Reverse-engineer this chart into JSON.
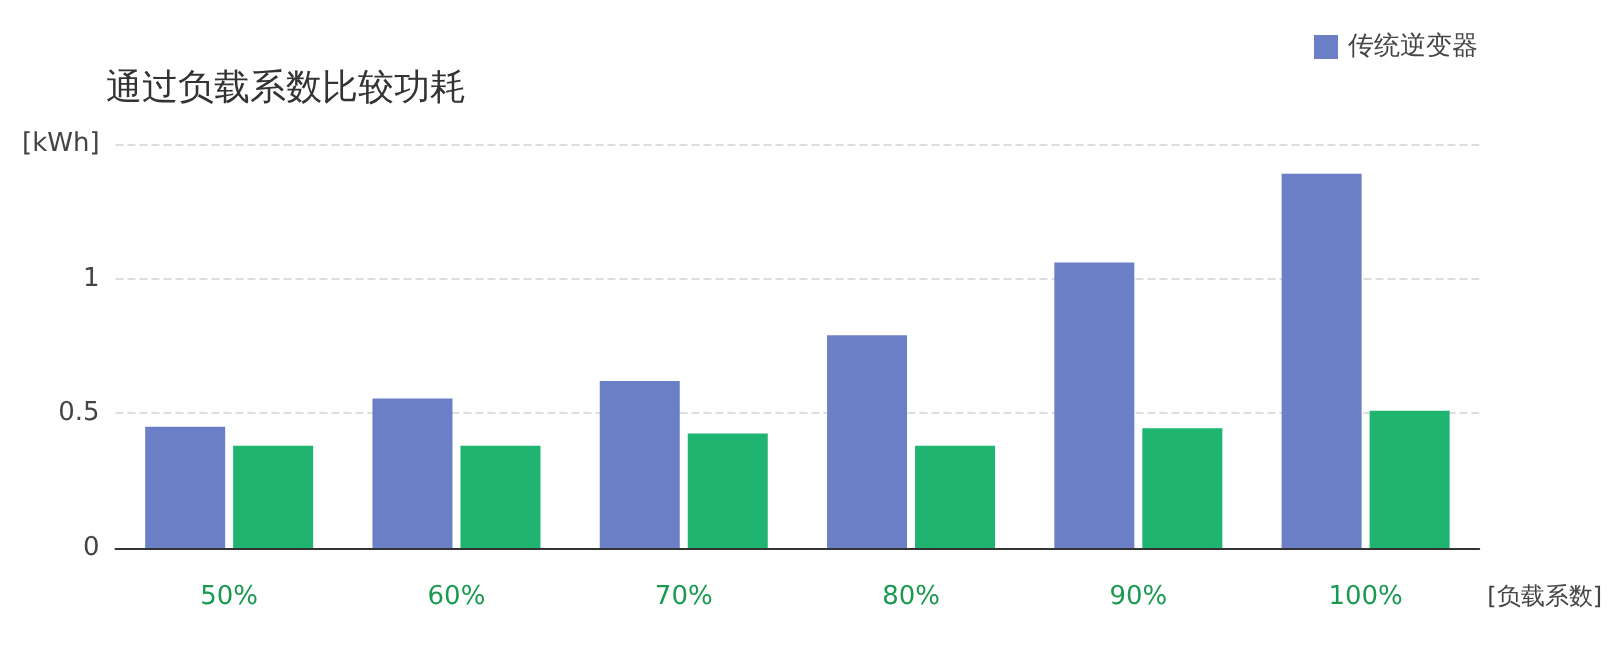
{
  "chart_data": {
    "type": "bar",
    "title": "通过负载系数比较功耗",
    "xlabel": "[负载系数]",
    "categories": [
      "50%",
      "60%",
      "70%",
      "80%",
      "90%",
      "100%"
    ],
    "series": [
      {
        "name": "传统逆变器",
        "color": "#6a7fc6",
        "values": [
          0.45,
          0.555,
          0.62,
          0.79,
          1.06,
          1.39
        ]
      },
      {
        "color": "#1fb470",
        "values": [
          0.38,
          0.38,
          0.425,
          0.38,
          0.445,
          0.51
        ]
      }
    ],
    "ylim": [
      0,
      1.5
    ],
    "yticks": [
      0,
      0.5,
      1,
      {
        "value": 1.5,
        "label": "[kWh]"
      }
    ],
    "grid": "y",
    "legend": "top right"
  }
}
